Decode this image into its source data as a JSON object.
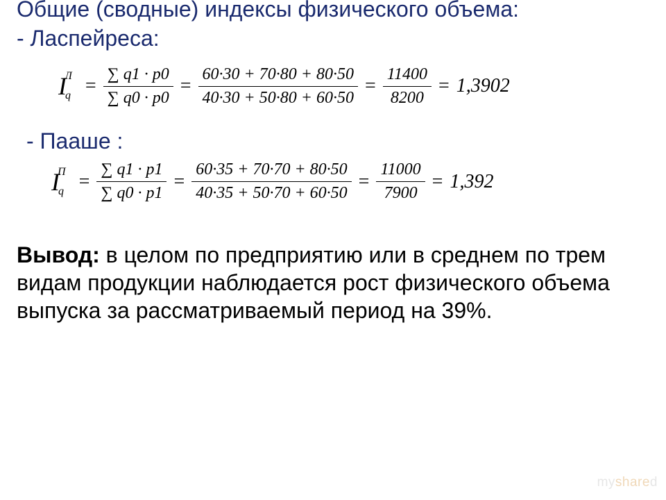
{
  "title": {
    "line1": "Общие (сводные) индексы физического объема:",
    "line2": "-  Ласпейреса:"
  },
  "paasche_label": "-  Пааше :",
  "formula1": {
    "lhs_symbol": "I",
    "lhs_sub": "q",
    "lhs_sup": "Л",
    "ratio_num": "∑ q1 · p0",
    "ratio_den": "∑ q0 · p0",
    "calc_num": "60·30 + 70·80 + 80·50",
    "calc_den": "40·30 + 50·80 + 60·50",
    "sum_num": "11400",
    "sum_den": "8200",
    "result": "1,3902"
  },
  "formula2": {
    "lhs_symbol": "I",
    "lhs_sub": "q",
    "lhs_sup": "П",
    "ratio_num": "∑ q1 · p1",
    "ratio_den": "∑ q0 · p1",
    "calc_num": "60·35 + 70·70 + 80·50",
    "calc_den": "40·35 + 50·70 + 60·50",
    "sum_num": "11000",
    "sum_den": "7900",
    "result": "1,392"
  },
  "conclusion": {
    "label": "Вывод:",
    "text": " в целом по предприятию или в среднем по трем видам продукции наблюдается рост физического объема выпуска за рассматриваемый период на 39%."
  },
  "watermark": {
    "part1": "my",
    "part2": "share",
    "part3": "d"
  },
  "colors": {
    "title": "#1a2a6e",
    "body": "#000000",
    "background": "#ffffff"
  }
}
